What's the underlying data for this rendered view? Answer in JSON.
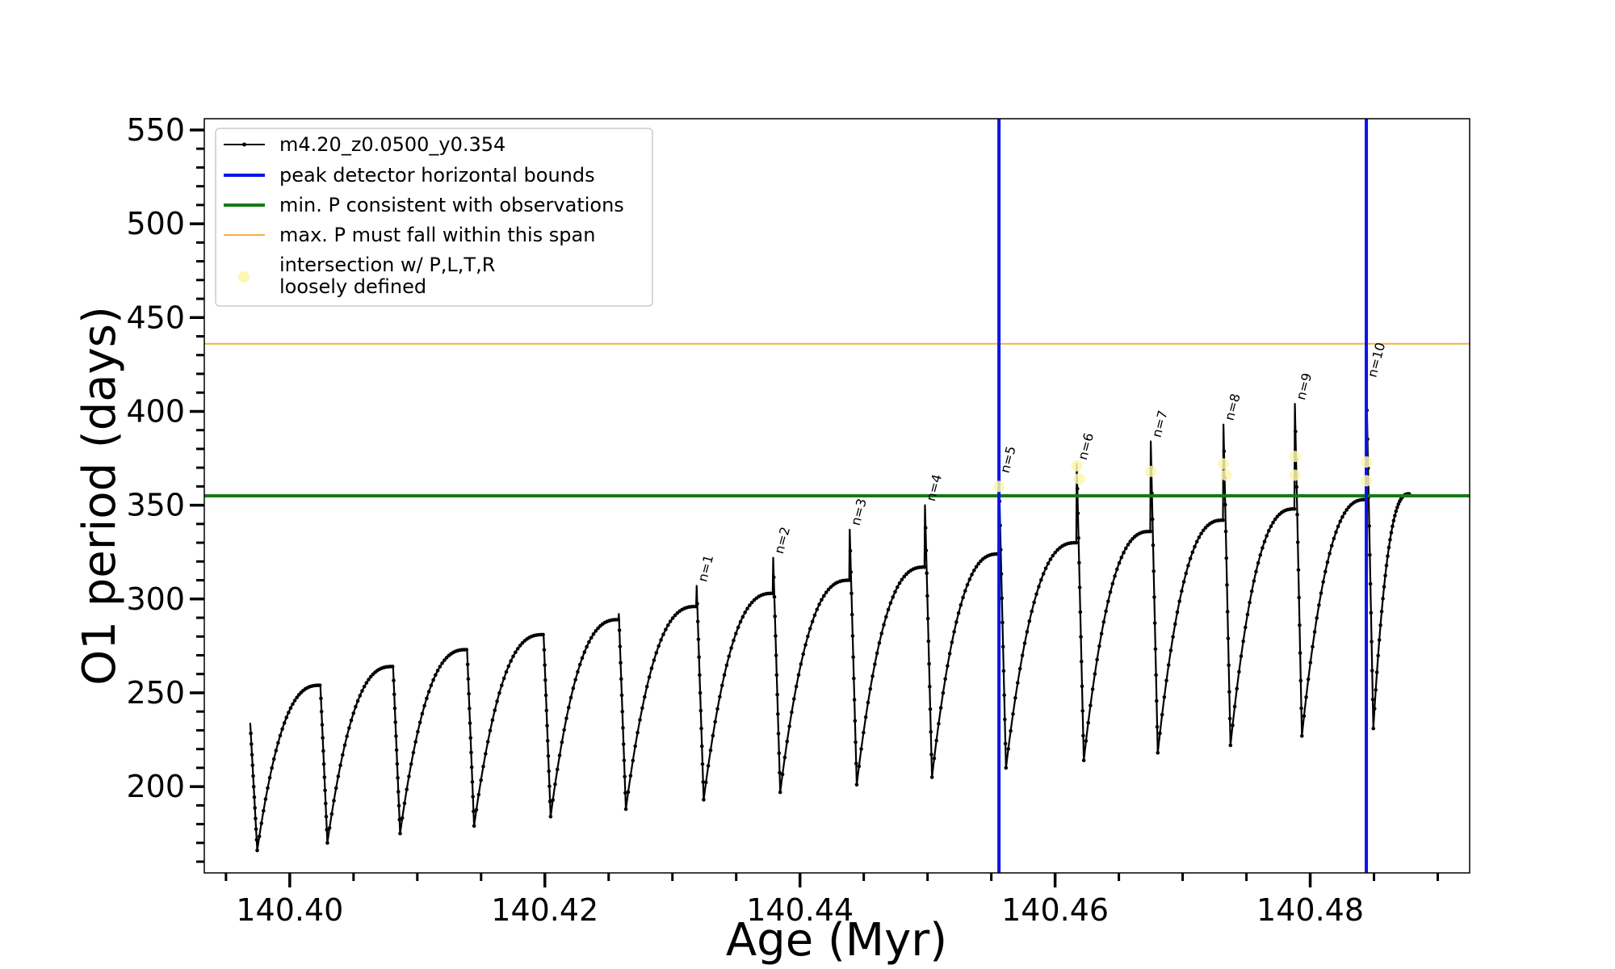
{
  "chart_data": {
    "type": "line",
    "xlabel": "Age (Myr)",
    "ylabel": "O1 period (days)",
    "xlim": [
      140.3933,
      140.4925
    ],
    "ylim": [
      154,
      556
    ],
    "xticks": [
      140.4,
      140.42,
      140.44,
      140.46,
      140.48
    ],
    "xtick_labels": [
      "140.40",
      "140.42",
      "140.44",
      "140.46",
      "140.48"
    ],
    "xminor_step": 0.005,
    "yticks": [
      200,
      250,
      300,
      350,
      400,
      450,
      500,
      550
    ],
    "ytick_labels": [
      "200",
      "250",
      "300",
      "350",
      "400",
      "450",
      "500",
      "550"
    ],
    "yminor_step": 10,
    "legend": [
      {
        "label": "m4.20_z0.0500_y0.354",
        "style": "black-line-dots",
        "color": "#000000"
      },
      {
        "label": "peak detector horizontal bounds",
        "style": "thick-line",
        "color": "#0a14e6"
      },
      {
        "label": "min. P consistent with observations",
        "style": "thick-line",
        "color": "#167a16"
      },
      {
        "label": "max. P must fall within this span",
        "style": "thin-line",
        "color": "#f5b042"
      },
      {
        "label": "intersection w/ P,L,T,R",
        "label2": "loosely defined",
        "style": "marker",
        "color": "#fbf7b0"
      }
    ],
    "legend_position": "upper-left",
    "vlines": [
      140.4556,
      140.4844
    ],
    "hlines": {
      "min_P": 355,
      "max_P": 436
    },
    "cycles": [
      {
        "start_x": 140.3969,
        "start_y": 234,
        "dip_y": 166,
        "max_y": 254,
        "spike_y": null,
        "label": null
      },
      {
        "start_x": 140.4024,
        "start_y": 254,
        "dip_y": 170,
        "max_y": 264,
        "spike_y": null,
        "label": null
      },
      {
        "start_x": 140.4081,
        "start_y": 264,
        "dip_y": 175,
        "max_y": 273,
        "spike_y": null,
        "label": null
      },
      {
        "start_x": 140.4139,
        "start_y": 273,
        "dip_y": 179,
        "max_y": 281,
        "spike_y": null,
        "label": null
      },
      {
        "start_x": 140.4199,
        "start_y": 281,
        "dip_y": 184,
        "max_y": 289,
        "spike_y": null,
        "label": null
      },
      {
        "start_x": 140.4258,
        "start_y": 289,
        "dip_y": 188,
        "max_y": 296,
        "spike_y": 292,
        "label": null
      },
      {
        "start_x": 140.4319,
        "start_y": 296,
        "dip_y": 193,
        "max_y": 303,
        "spike_y": 307,
        "label": "n=1"
      },
      {
        "start_x": 140.4379,
        "start_y": 303,
        "dip_y": 197,
        "max_y": 310,
        "spike_y": 322,
        "label": "n=2"
      },
      {
        "start_x": 140.4439,
        "start_y": 310,
        "dip_y": 201,
        "max_y": 317,
        "spike_y": 337,
        "label": "n=3"
      },
      {
        "start_x": 140.4498,
        "start_y": 317,
        "dip_y": 205,
        "max_y": 324,
        "spike_y": 350,
        "label": "n=4"
      },
      {
        "start_x": 140.4556,
        "start_y": 324,
        "dip_y": 210,
        "max_y": 330,
        "spike_y": 365,
        "label": "n=5"
      },
      {
        "start_x": 140.4617,
        "start_y": 330,
        "dip_y": 214,
        "max_y": 336,
        "spike_y": 372,
        "label": "n=6"
      },
      {
        "start_x": 140.4675,
        "start_y": 336,
        "dip_y": 218,
        "max_y": 342,
        "spike_y": 384,
        "label": "n=7"
      },
      {
        "start_x": 140.4732,
        "start_y": 342,
        "dip_y": 222,
        "max_y": 348,
        "spike_y": 393,
        "label": "n=8"
      },
      {
        "start_x": 140.4788,
        "start_y": 348,
        "dip_y": 227,
        "max_y": 353,
        "spike_y": 404,
        "label": "n=9"
      },
      {
        "start_x": 140.4844,
        "start_y": 353,
        "dip_y": 231,
        "max_y": 356,
        "spike_y": 416,
        "label": "n=10"
      }
    ],
    "end_x": 140.4878,
    "intersections": [
      {
        "x": 140.4556,
        "y": 360
      },
      {
        "x": 140.4617,
        "y": 371
      },
      {
        "x": 140.4619,
        "y": 364
      },
      {
        "x": 140.4675,
        "y": 368
      },
      {
        "x": 140.4732,
        "y": 372
      },
      {
        "x": 140.4734,
        "y": 366
      },
      {
        "x": 140.4788,
        "y": 376
      },
      {
        "x": 140.4788,
        "y": 366
      },
      {
        "x": 140.4844,
        "y": 373
      },
      {
        "x": 140.4844,
        "y": 363
      }
    ]
  }
}
